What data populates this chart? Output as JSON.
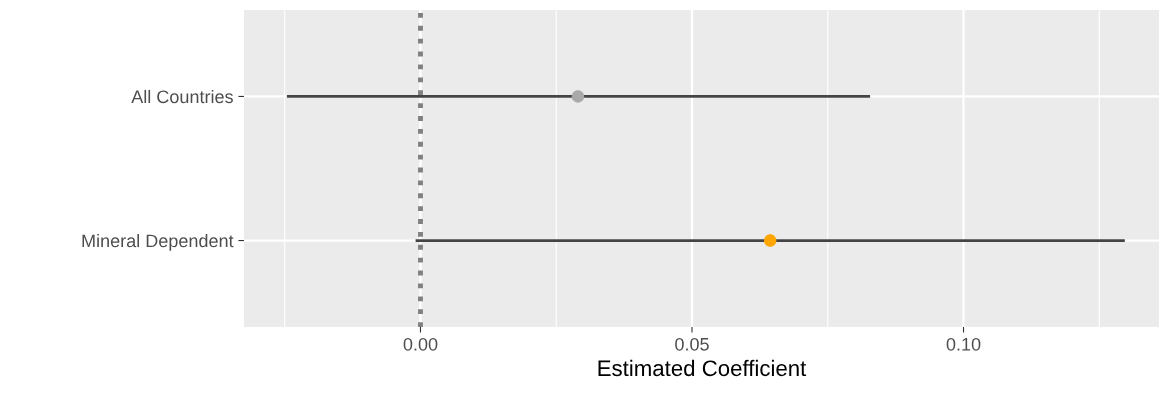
{
  "chart_data": {
    "type": "scatter",
    "orientation": "horizontal",
    "xlabel": "Estimated Coefficient",
    "categories": [
      "All Countries",
      "Mineral Dependent"
    ],
    "values": [
      0.029,
      0.0644
    ],
    "colors": [
      "#a9a9a9",
      "#ffa500"
    ],
    "errors": [
      [
        -0.0246,
        0.0828
      ],
      [
        -0.0009,
        0.1297
      ]
    ],
    "xlim": [
      -0.0325,
      0.136
    ],
    "xticks": [
      {
        "value": -0.025,
        "label": null
      },
      {
        "value": 0.0,
        "label": "0.00"
      },
      {
        "value": 0.025,
        "label": null
      },
      {
        "value": 0.05,
        "label": "0.05"
      },
      {
        "value": 0.075,
        "label": null
      },
      {
        "value": 0.1,
        "label": "0.10"
      },
      {
        "value": 0.125,
        "label": null
      }
    ],
    "ref_lines": [
      {
        "axis": "x",
        "value": 0,
        "color": "#808080",
        "line_style": "dotted"
      }
    ],
    "grid": true,
    "marker": "circle",
    "legend": false
  }
}
